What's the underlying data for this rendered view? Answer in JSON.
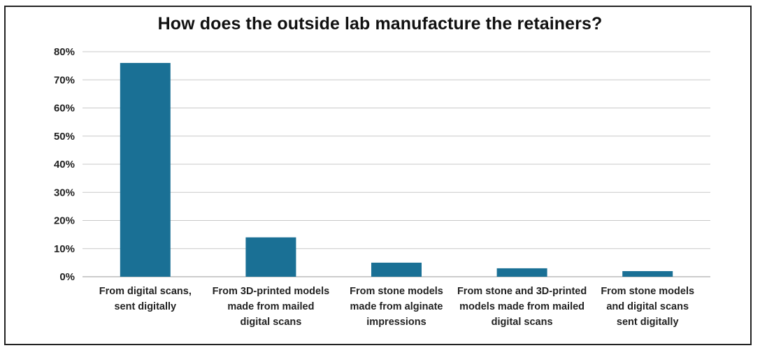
{
  "chart_data": {
    "type": "bar",
    "title": "How does the outside lab manufacture the retainers?",
    "xlabel": "",
    "ylabel": "",
    "categories": [
      [
        "From digital scans,",
        "sent digitally"
      ],
      [
        "From 3D-printed models",
        "made from mailed",
        "digital scans"
      ],
      [
        "From stone models",
        "made from alginate",
        "impressions"
      ],
      [
        "From stone and 3D-printed",
        "models made from mailed",
        "digital scans"
      ],
      [
        "From stone models",
        "and digital scans",
        "sent digitally"
      ]
    ],
    "values": [
      76,
      14,
      5,
      3,
      2
    ],
    "ylim": [
      0,
      80
    ],
    "yticks": [
      "0%",
      "10%",
      "20%",
      "30%",
      "40%",
      "50%",
      "60%",
      "70%",
      "80%"
    ],
    "grid": true,
    "bar_color": "#1a7095",
    "grid_color": "#c8c8c8"
  }
}
